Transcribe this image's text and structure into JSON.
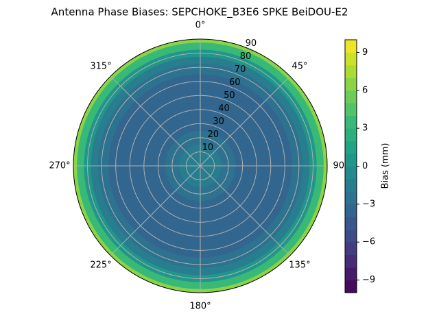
{
  "chart_data": {
    "type": "polar-contour",
    "title": "Antenna Phase Biases: SEPCHOKE_B3E6   SPKE BeiDOU-E2",
    "r": [
      0,
      10,
      20,
      30,
      40,
      50,
      60,
      70,
      75,
      80,
      85,
      90
    ],
    "values": [
      -1.5,
      -2,
      -2.5,
      -3.5,
      -3.5,
      -3.5,
      -3.5,
      -3,
      -2,
      0,
      3,
      6
    ],
    "rlim": [
      0,
      90
    ],
    "rticks": [
      10,
      20,
      30,
      40,
      50,
      60,
      70,
      80,
      90
    ],
    "thetaticks": [
      {
        "value": 0,
        "label": "0°"
      },
      {
        "value": 45,
        "label": "45°"
      },
      {
        "value": 90,
        "label": "90°"
      },
      {
        "value": 135,
        "label": "135°"
      },
      {
        "value": 180,
        "label": "180°"
      },
      {
        "value": 225,
        "label": "225°"
      },
      {
        "value": 270,
        "label": "270°"
      },
      {
        "value": 315,
        "label": "315°"
      }
    ],
    "grid": true,
    "colormap": "viridis",
    "clim": [
      -10,
      10
    ],
    "levels": 20,
    "colorbar_label": "Bias (mm)",
    "cticks": [
      {
        "value": -9,
        "label": "−9"
      },
      {
        "value": -6,
        "label": "−6"
      },
      {
        "value": -3,
        "label": "−3"
      },
      0,
      3,
      6,
      9
    ]
  }
}
